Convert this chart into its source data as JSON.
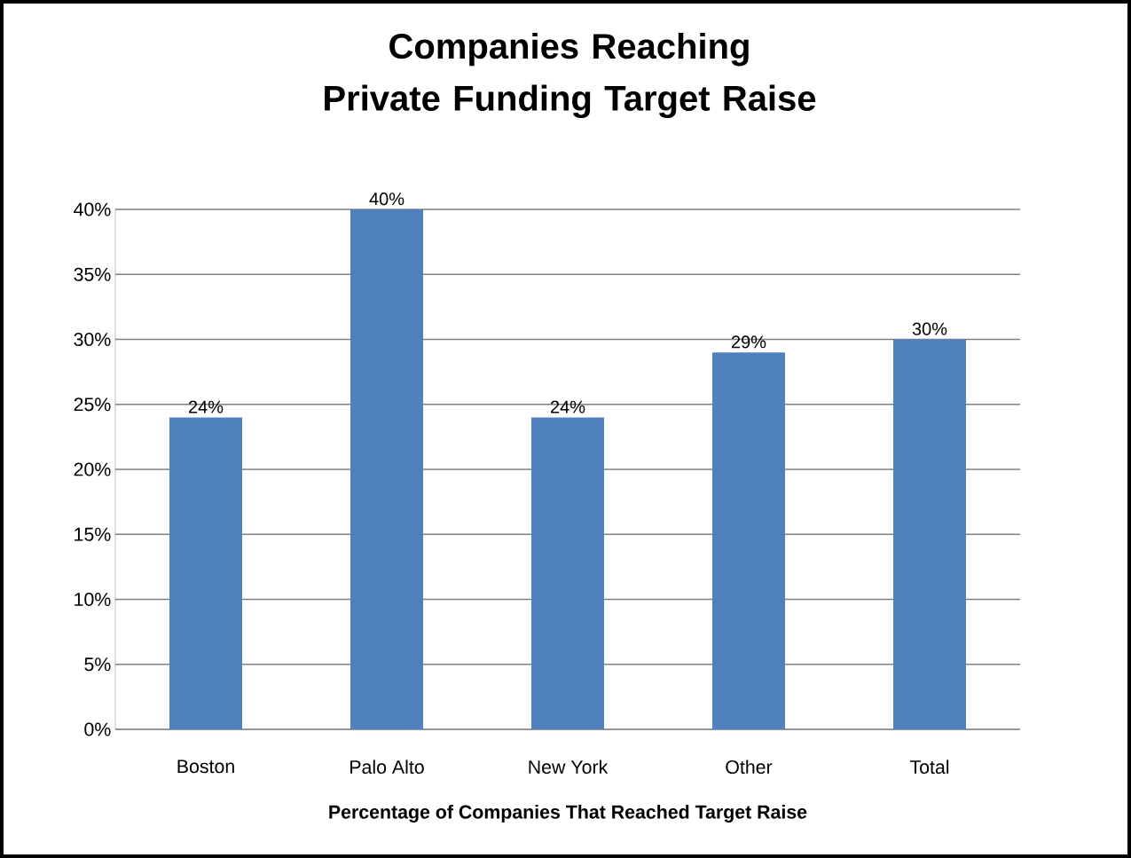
{
  "chart_data": {
    "type": "bar",
    "title": "Companies Reaching\nPrivate Funding Target Raise",
    "xlabel": "Percentage of Companies That Reached Target Raise",
    "categories": [
      "Boston",
      "Palo Alto",
      "New York",
      "Other",
      "Total"
    ],
    "values": [
      24,
      40,
      24,
      29,
      30
    ],
    "value_labels": [
      "24%",
      "40%",
      "24%",
      "29%",
      "30%"
    ],
    "color": "#4f81bd",
    "ylim": [
      0,
      40
    ],
    "yticks": [
      {
        "value": 0,
        "label": "0%"
      },
      {
        "value": 5,
        "label": "5%"
      },
      {
        "value": 10,
        "label": "10%"
      },
      {
        "value": 15,
        "label": "15%"
      },
      {
        "value": 20,
        "label": "20%"
      },
      {
        "value": 25,
        "label": "25%"
      },
      {
        "value": 30,
        "label": "30%"
      },
      {
        "value": 35,
        "label": "35%"
      },
      {
        "value": 40,
        "label": "40%"
      }
    ],
    "grid": "y"
  }
}
